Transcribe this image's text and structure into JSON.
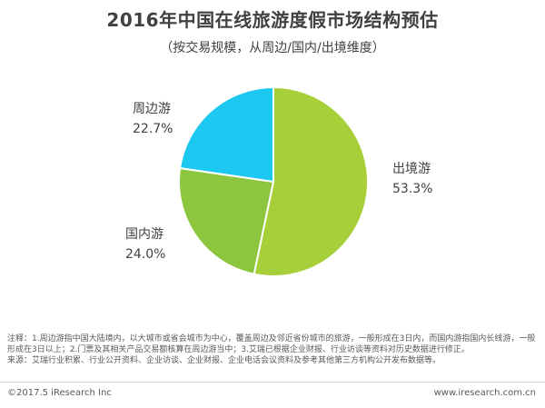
{
  "header": {
    "title": "2016年中国在线旅游度假市场结构预估",
    "subtitle": "（按交易规模，从周边/国内/出境维度）"
  },
  "chart_data": {
    "type": "pie",
    "slices": [
      {
        "label": "出境游",
        "value": 53.3,
        "value_label": "53.3%",
        "color": "#a6cf3a"
      },
      {
        "label": "国内游",
        "value": 24.0,
        "value_label": "24.0%",
        "color": "#8cc63f"
      },
      {
        "label": "周边游",
        "value": 22.7,
        "value_label": "22.7%",
        "color": "#1cc8f0"
      }
    ],
    "start": "12 o'clock",
    "direction": "clockwise",
    "legend": "none (direct labels)"
  },
  "notes": {
    "line1": "注释：1.周边游指中国大陆境内，以大城市或省会城市为中心，覆盖周边及邻近省份城市的旅游，一般形成在3日内，而国内游指国内长线游，一般形成在3日以上；2.门票及其相关产品交易额核算在周边游当中；3.艾瑞已根据企业财报、行业访谈等资料对历史数据进行修正。",
    "line2": "来源：艾瑞行业积累、行业公开资料、企业访谈、企业财报、企业电话会议资料及参考其他第三方机构公开发布数据等。"
  },
  "footer": {
    "copyright": "©2017.5 iResearch Inc",
    "website": "www.iresearch.com.cn"
  }
}
